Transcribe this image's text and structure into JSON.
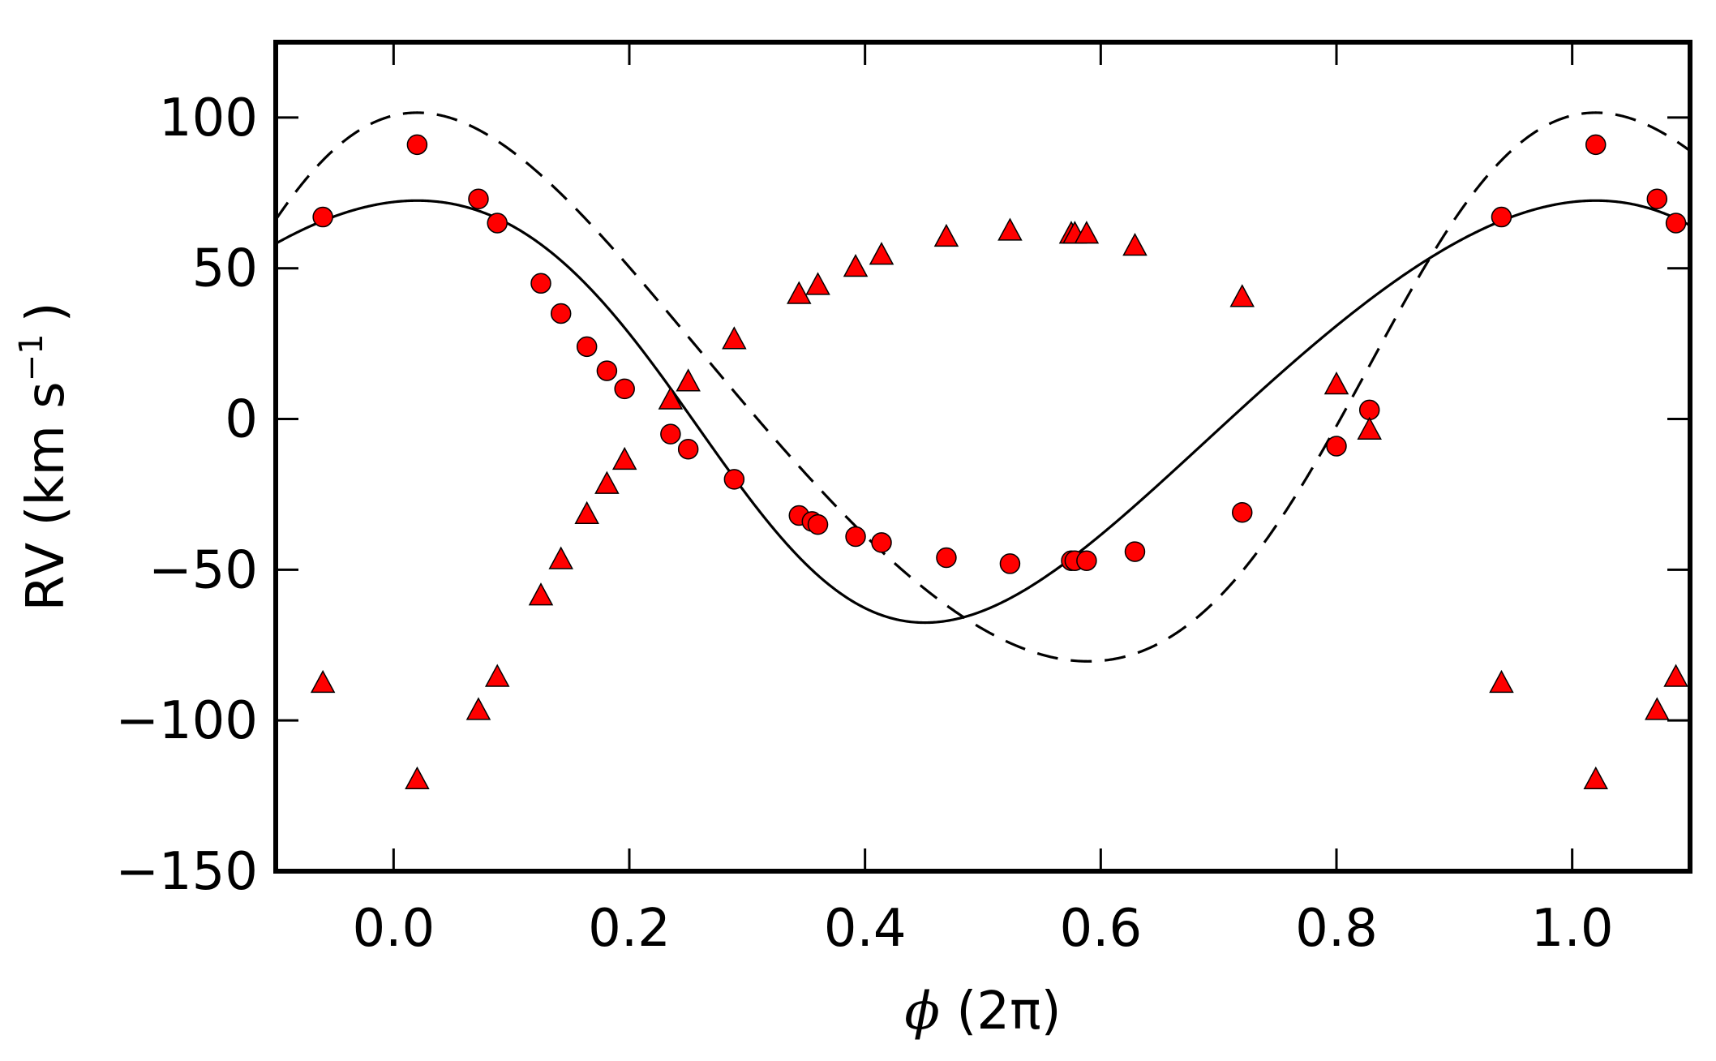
{
  "chart_data": {
    "type": "scatter",
    "title": "",
    "xlabel": {
      "symbol": "ϕ",
      "rest": " (2π)"
    },
    "ylabel": {
      "main": "RV (km s",
      "sup": "−1",
      "close": ")"
    },
    "xlim": [
      -0.1,
      1.1
    ],
    "ylim": [
      -150,
      125
    ],
    "x_ticks": [
      0.0,
      0.2,
      0.4,
      0.6,
      0.8,
      1.0
    ],
    "x_tick_labels": [
      "0.0",
      "0.2",
      "0.4",
      "0.6",
      "0.8",
      "1.0"
    ],
    "y_ticks": [
      100,
      50,
      0,
      -50,
      -100,
      -150
    ],
    "y_tick_labels": [
      "100",
      "50",
      "0",
      "−50",
      "−100",
      "−150"
    ],
    "grid": false,
    "legend": "none",
    "marker_color": "#ff0000",
    "model": {
      "gamma": 6.0,
      "primary": {
        "K": 70,
        "e": 0.12,
        "omega_deg": 115,
        "phase_peak": 0.02
      },
      "secondary": {
        "K": 91,
        "e": 0.12,
        "omega_deg": 295,
        "phase_peak": 0.02
      }
    },
    "series": [
      {
        "marker": "circle",
        "line": "solid",
        "x": [
          -0.06,
          0.02,
          0.072,
          0.088,
          0.125,
          0.142,
          0.164,
          0.181,
          0.196,
          0.235,
          0.25,
          0.289,
          0.344,
          0.355,
          0.36,
          0.392,
          0.414,
          0.469,
          0.523,
          0.575,
          0.578,
          0.588,
          0.629,
          0.72,
          0.8,
          0.828,
          0.94,
          1.02,
          1.072,
          1.088
        ],
        "y": [
          67,
          91,
          73,
          65,
          45,
          35,
          24,
          16,
          10,
          -5,
          -10,
          -20,
          -32,
          -34,
          -35,
          -39,
          -41,
          -46,
          -48,
          -47,
          -47,
          -47,
          -44,
          -31,
          -9,
          3,
          67,
          91,
          73,
          65
        ]
      },
      {
        "marker": "triangle",
        "line": "dashed",
        "x": [
          -0.06,
          0.02,
          0.072,
          0.088,
          0.125,
          0.142,
          0.164,
          0.181,
          0.196,
          0.235,
          0.25,
          0.289,
          0.344,
          0.36,
          0.392,
          0.414,
          0.469,
          0.523,
          0.575,
          0.578,
          0.588,
          0.629,
          0.72,
          0.8,
          0.828,
          0.94,
          1.02,
          1.072,
          1.088
        ],
        "y": [
          -88,
          -120,
          -97,
          -86,
          -59,
          -47,
          -32,
          -22,
          -14,
          6,
          12,
          26,
          41,
          44,
          50,
          54,
          60,
          62,
          61,
          61,
          61,
          57,
          40,
          11,
          -4,
          -88,
          -120,
          -97,
          -86
        ]
      }
    ]
  }
}
